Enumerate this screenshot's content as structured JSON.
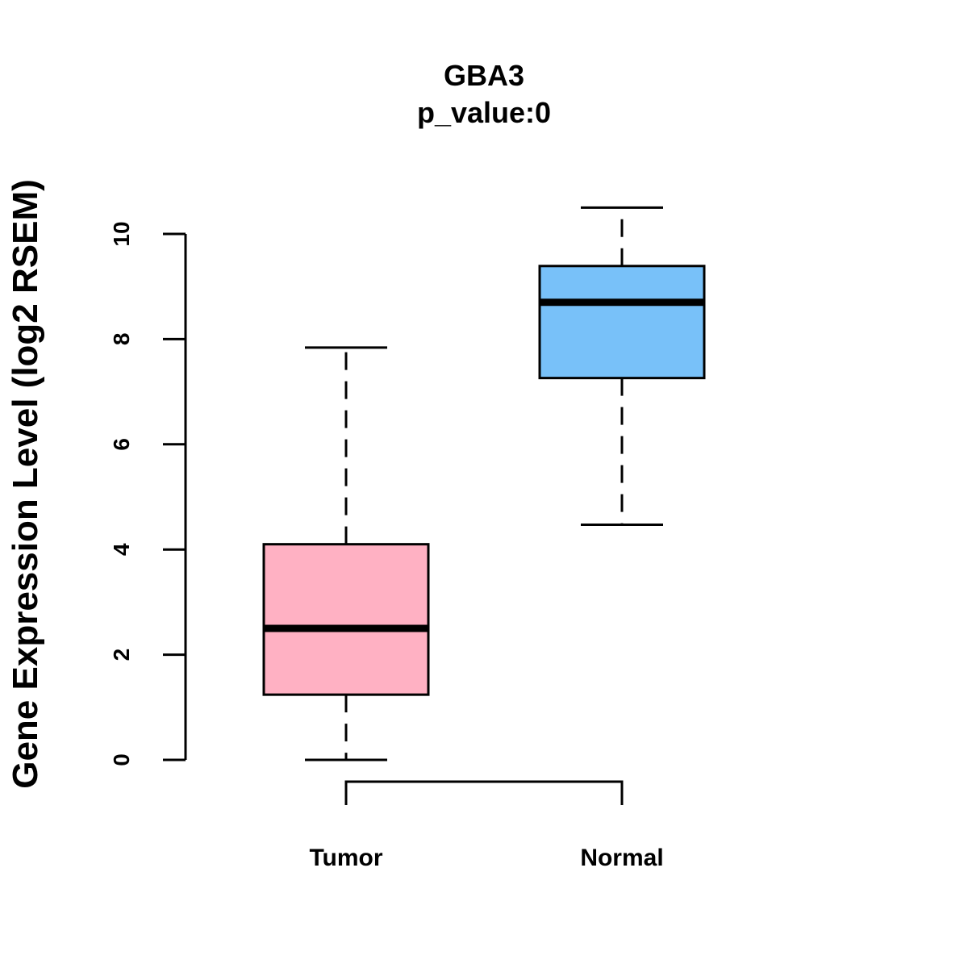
{
  "chart_data": {
    "type": "boxplot",
    "title": "GBA3",
    "subtitle": "p_value:0",
    "xlabel": "",
    "ylabel": "Gene Expression Level (log2 RSEM)",
    "ylim": [
      0,
      10.5
    ],
    "yticks": [
      "0",
      "2",
      "4",
      "6",
      "8",
      "10"
    ],
    "categories": [
      "Tumor",
      "Normal"
    ],
    "boxes": [
      {
        "whisker_low": 0,
        "q1": 1.24,
        "median": 2.5,
        "q3": 4.1,
        "whisker_high": 7.84,
        "color": "#ffb1c3"
      },
      {
        "whisker_low": 4.47,
        "q1": 7.26,
        "median": 8.7,
        "q3": 9.39,
        "whisker_high": 10.5,
        "color": "#78c1f9"
      }
    ],
    "comparison_bracket": [
      "Tumor",
      "Normal"
    ],
    "grid": false
  }
}
